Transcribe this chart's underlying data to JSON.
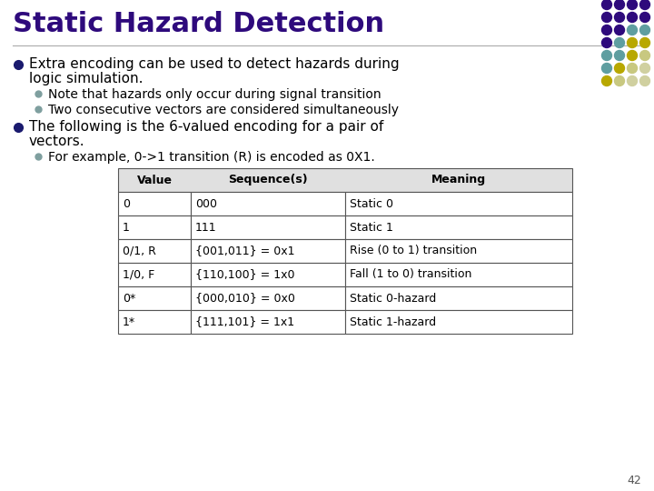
{
  "title": "Static Hazard Detection",
  "title_color": "#2E0A7C",
  "bg_color": "#FFFFFF",
  "sub_bullet1": "Note that hazards only occur during signal transition",
  "sub_bullet2": "Two consecutive vectors are considered simultaneously",
  "sub_bullet3": "For example, 0->1 transition (R) is encoded as 0X1.",
  "table_headers": [
    "Value",
    "Sequence(s)",
    "Meaning"
  ],
  "table_rows": [
    [
      "0",
      "000",
      "Static 0"
    ],
    [
      "1",
      "111",
      "Static 1"
    ],
    [
      "0/1, R",
      "{001,011} = 0x1",
      "Rise (0 to 1) transition"
    ],
    [
      "1/0, F",
      "{110,100} = 1x0",
      "Fall (1 to 0) transition"
    ],
    [
      "0*",
      "{000,010} = 0x0",
      "Static 0-hazard"
    ],
    [
      "1*",
      "{111,101} = 1x1",
      "Static 1-hazard"
    ]
  ],
  "main_bullet_color": "#1A1A6E",
  "sub_bullet_color": "#7F9F9F",
  "text_color": "#000000",
  "dot_grid": [
    [
      "#2E0A7C",
      "#2E0A7C",
      "#2E0A7C",
      "#2E0A7C"
    ],
    [
      "#2E0A7C",
      "#2E0A7C",
      "#2E0A7C",
      "#2E0A7C"
    ],
    [
      "#2E0A7C",
      "#2E0A7C",
      "#5F9EA0",
      "#5F9EA0"
    ],
    [
      "#2E0A7C",
      "#5F9EA0",
      "#B8A800",
      "#B8A800"
    ],
    [
      "#5F9EA0",
      "#5F9EA0",
      "#B8A800",
      "#C8C880"
    ],
    [
      "#5F9EA0",
      "#B8A800",
      "#C8C880",
      "#D0D0A0"
    ],
    [
      "#B8A800",
      "#C8C880",
      "#D0D0A0",
      "#D0D0A0"
    ]
  ],
  "page_num": "42"
}
